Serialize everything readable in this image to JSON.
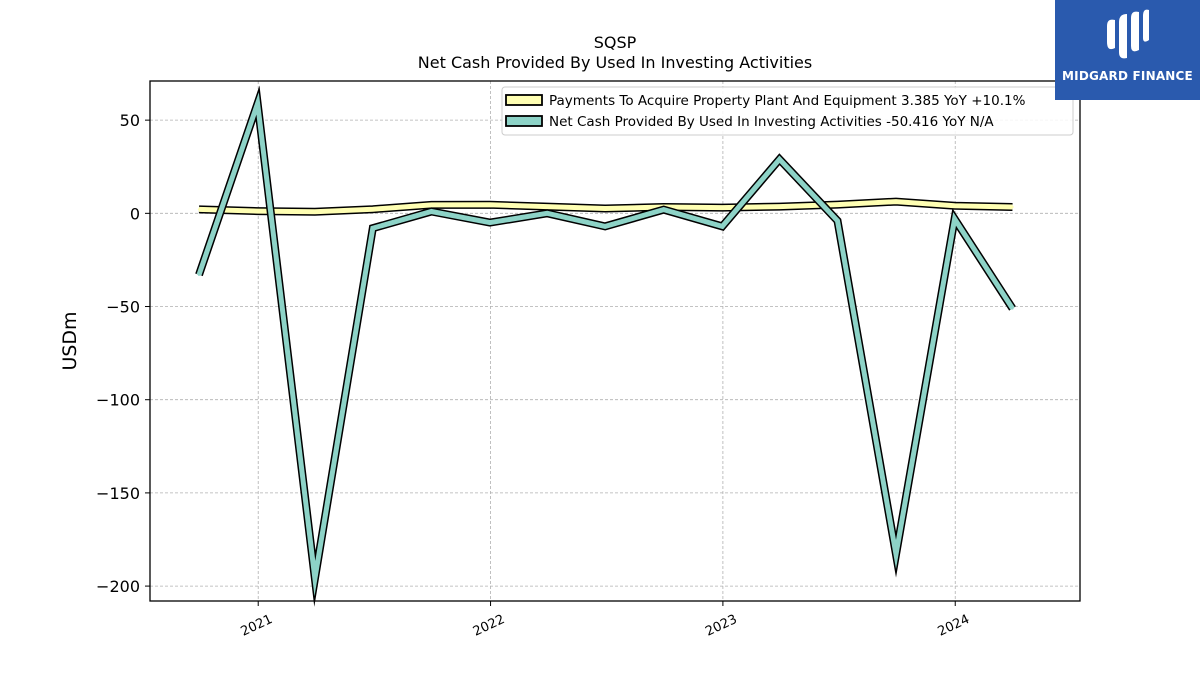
{
  "chart_data": {
    "type": "line",
    "title": "SQSP",
    "subtitle": "Net Cash Provided By Used In Investing Activities",
    "ylabel": "USDm",
    "xlabel": "",
    "ylim": [
      -208,
      71
    ],
    "xlim": [
      "2020-07-15",
      "2024-07-15"
    ],
    "yticks": [
      50,
      0,
      -50,
      -100,
      -150,
      -200
    ],
    "ytick_labels": [
      "50",
      "0",
      "−50",
      "−100",
      "−150",
      "−200"
    ],
    "xticks": [
      "2021-01-01",
      "2022-01-01",
      "2023-01-01",
      "2024-01-01"
    ],
    "xtick_labels": [
      "2021",
      "2022",
      "2023",
      "2024"
    ],
    "grid": true,
    "legend_position": "top-right",
    "series": [
      {
        "name": "Payments To Acquire Property Plant And Equipment  3.385 YoY +10.1%",
        "color": "#ffffb3",
        "x": [
          "2020-09-30",
          "2020-12-31",
          "2021-03-31",
          "2021-06-30",
          "2021-09-30",
          "2021-12-31",
          "2022-03-31",
          "2022-06-30",
          "2022-09-30",
          "2022-12-31",
          "2023-03-31",
          "2023-06-30",
          "2023-09-30",
          "2023-12-31",
          "2024-03-31"
        ],
        "values": [
          2.1,
          1.2,
          0.8,
          2.2,
          4.5,
          4.6,
          3.6,
          2.6,
          3.4,
          3.1,
          3.6,
          4.7,
          6.3,
          4.1,
          3.4
        ]
      },
      {
        "name": "Net Cash Provided By Used In Investing Activities  -50.416 YoY N/A",
        "color": "#8dd3c7",
        "x": [
          "2020-09-30",
          "2020-12-31",
          "2021-03-31",
          "2021-06-30",
          "2021-09-30",
          "2021-12-31",
          "2022-03-31",
          "2022-06-30",
          "2022-09-30",
          "2022-12-31",
          "2023-03-31",
          "2023-06-30",
          "2023-09-30",
          "2023-12-31",
          "2024-03-31"
        ],
        "values": [
          -33,
          59,
          -196,
          -8,
          1,
          -5,
          0,
          -7,
          2,
          -7,
          29,
          -4,
          -183,
          -3,
          -51
        ]
      }
    ]
  },
  "logo": {
    "text": "MIDGARD FINANCE",
    "background": "#2a5aae"
  }
}
